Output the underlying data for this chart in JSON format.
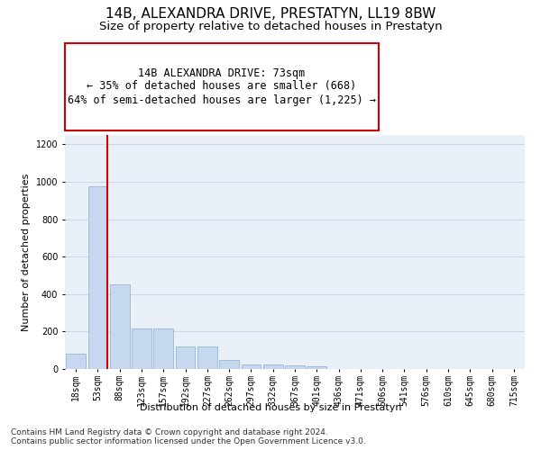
{
  "title": "14B, ALEXANDRA DRIVE, PRESTATYN, LL19 8BW",
  "subtitle": "Size of property relative to detached houses in Prestatyn",
  "xlabel": "Distribution of detached houses by size in Prestatyn",
  "ylabel": "Number of detached properties",
  "footnote": "Contains HM Land Registry data © Crown copyright and database right 2024.\nContains public sector information licensed under the Open Government Licence v3.0.",
  "bar_labels": [
    "18sqm",
    "53sqm",
    "88sqm",
    "123sqm",
    "157sqm",
    "192sqm",
    "227sqm",
    "262sqm",
    "297sqm",
    "332sqm",
    "367sqm",
    "401sqm",
    "436sqm",
    "471sqm",
    "506sqm",
    "541sqm",
    "576sqm",
    "610sqm",
    "645sqm",
    "680sqm",
    "715sqm"
  ],
  "bar_values": [
    80,
    975,
    450,
    215,
    215,
    120,
    120,
    48,
    25,
    25,
    20,
    15,
    0,
    0,
    0,
    0,
    0,
    0,
    0,
    0,
    0
  ],
  "bar_color": "#c5d8f0",
  "bar_edgecolor": "#a0bcd8",
  "grid_color": "#d0d8e8",
  "background_color": "#eaf0f8",
  "annotation_text": "14B ALEXANDRA DRIVE: 73sqm\n← 35% of detached houses are smaller (668)\n64% of semi-detached houses are larger (1,225) →",
  "annotation_box_edgecolor": "#cc0000",
  "annotation_box_facecolor": "#ffffff",
  "vline_color": "#cc0000",
  "ylim": [
    0,
    1250
  ],
  "title_fontsize": 11,
  "subtitle_fontsize": 9.5,
  "axis_label_fontsize": 8,
  "tick_fontsize": 7,
  "annotation_fontsize": 8.5,
  "footnote_fontsize": 6.5
}
